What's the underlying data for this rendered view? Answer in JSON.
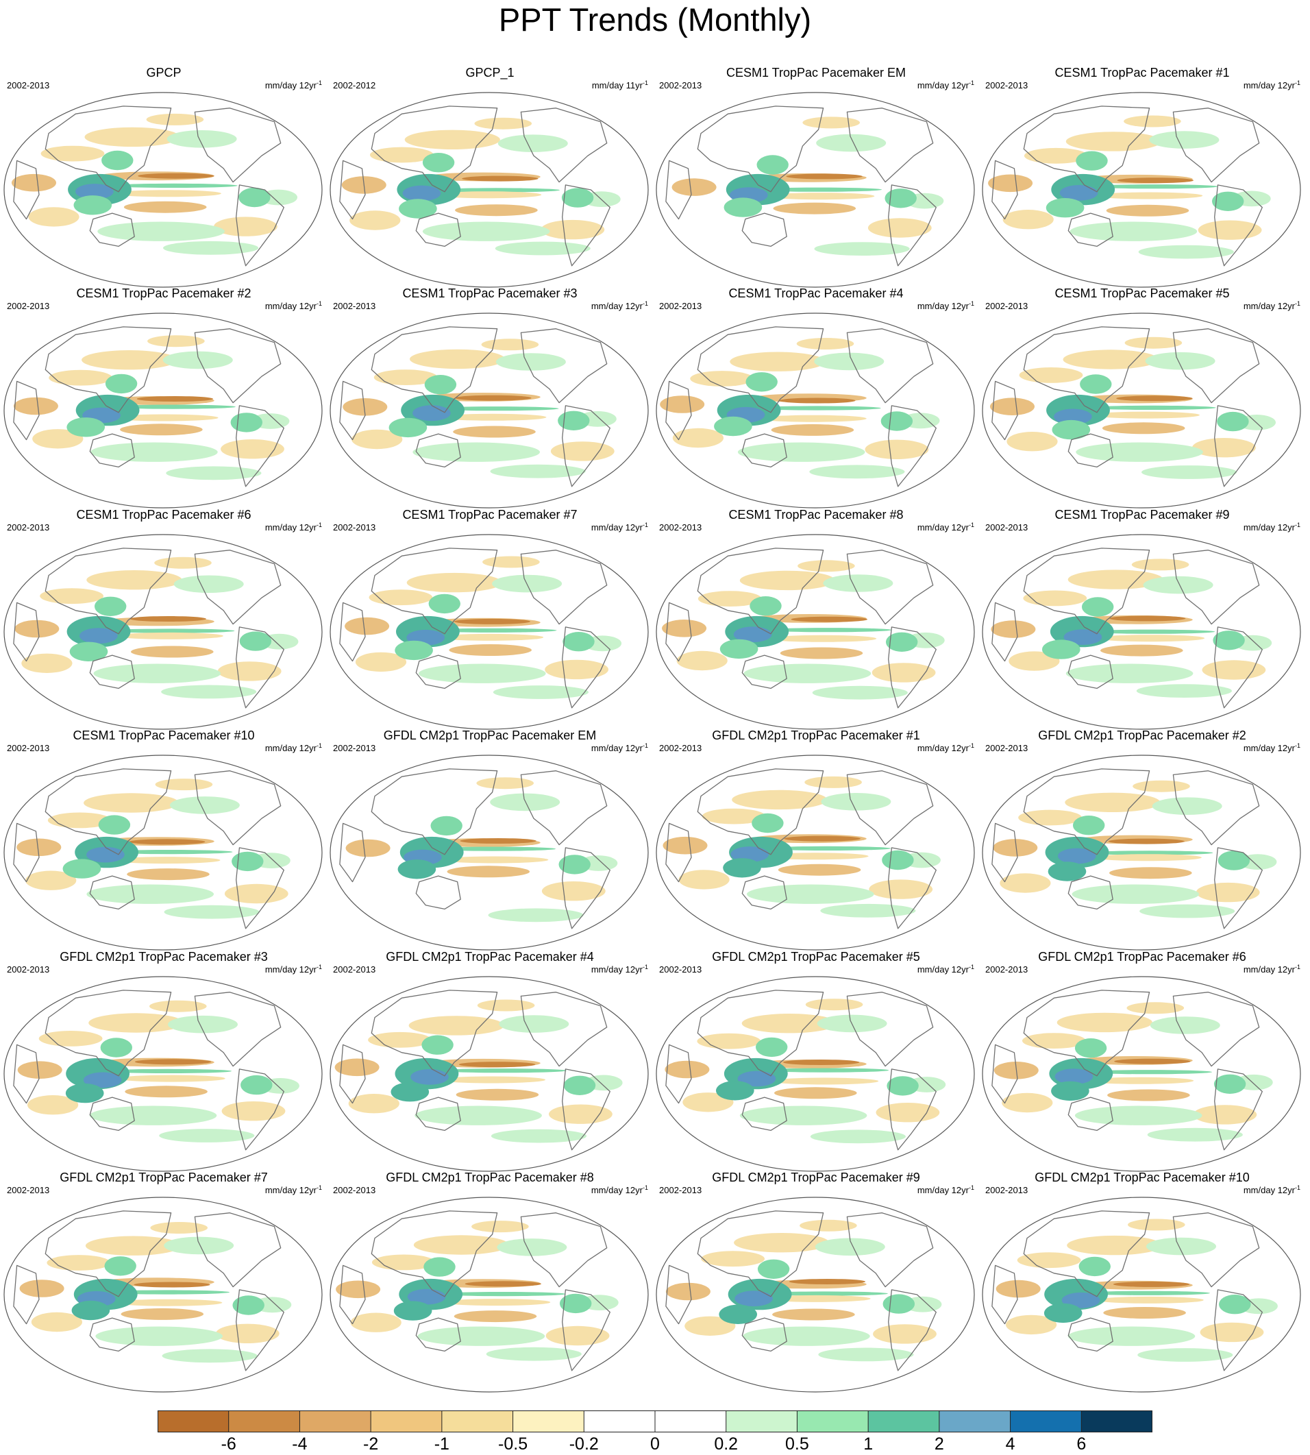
{
  "title": "PPT Trends (Monthly)",
  "panels": [
    {
      "title": "GPCP",
      "period": "2002-2013",
      "units": "mm/day 12yr",
      "units_exp": "-1"
    },
    {
      "title": "GPCP_1",
      "period": "2002-2012",
      "units": "mm/day 11yr",
      "units_exp": "-1"
    },
    {
      "title": "CESM1 TropPac Pacemaker EM",
      "period": "2002-2013",
      "units": "mm/day 12yr",
      "units_exp": "-1"
    },
    {
      "title": "CESM1 TropPac Pacemaker #1",
      "period": "2002-2013",
      "units": "mm/day 12yr",
      "units_exp": "-1"
    },
    {
      "title": "CESM1 TropPac Pacemaker #2",
      "period": "2002-2013",
      "units": "mm/day 12yr",
      "units_exp": "-1"
    },
    {
      "title": "CESM1 TropPac Pacemaker #3",
      "period": "2002-2013",
      "units": "mm/day 12yr",
      "units_exp": "-1"
    },
    {
      "title": "CESM1 TropPac Pacemaker #4",
      "period": "2002-2013",
      "units": "mm/day 12yr",
      "units_exp": "-1"
    },
    {
      "title": "CESM1 TropPac Pacemaker #5",
      "period": "2002-2013",
      "units": "mm/day 12yr",
      "units_exp": "-1"
    },
    {
      "title": "CESM1 TropPac Pacemaker #6",
      "period": "2002-2013",
      "units": "mm/day 12yr",
      "units_exp": "-1"
    },
    {
      "title": "CESM1 TropPac Pacemaker #7",
      "period": "2002-2013",
      "units": "mm/day 12yr",
      "units_exp": "-1"
    },
    {
      "title": "CESM1 TropPac Pacemaker #8",
      "period": "2002-2013",
      "units": "mm/day 12yr",
      "units_exp": "-1"
    },
    {
      "title": "CESM1 TropPac Pacemaker #9",
      "period": "2002-2013",
      "units": "mm/day 12yr",
      "units_exp": "-1"
    },
    {
      "title": "CESM1 TropPac Pacemaker #10",
      "period": "2002-2013",
      "units": "mm/day 12yr",
      "units_exp": "-1"
    },
    {
      "title": "GFDL CM2p1 TropPac Pacemaker EM",
      "period": "2002-2013",
      "units": "mm/day 12yr",
      "units_exp": "-1"
    },
    {
      "title": "GFDL CM2p1 TropPac Pacemaker #1",
      "period": "2002-2013",
      "units": "mm/day 12yr",
      "units_exp": "-1"
    },
    {
      "title": "GFDL CM2p1 TropPac Pacemaker #2",
      "period": "2002-2013",
      "units": "mm/day 12yr",
      "units_exp": "-1"
    },
    {
      "title": "GFDL CM2p1 TropPac Pacemaker #3",
      "period": "2002-2013",
      "units": "mm/day 12yr",
      "units_exp": "-1"
    },
    {
      "title": "GFDL CM2p1 TropPac Pacemaker #4",
      "period": "2002-2013",
      "units": "mm/day 12yr",
      "units_exp": "-1"
    },
    {
      "title": "GFDL CM2p1 TropPac Pacemaker #5",
      "period": "2002-2013",
      "units": "mm/day 12yr",
      "units_exp": "-1"
    },
    {
      "title": "GFDL CM2p1 TropPac Pacemaker #6",
      "period": "2002-2013",
      "units": "mm/day 12yr",
      "units_exp": "-1"
    },
    {
      "title": "GFDL CM2p1 TropPac Pacemaker #7",
      "period": "2002-2013",
      "units": "mm/day 12yr",
      "units_exp": "-1"
    },
    {
      "title": "GFDL CM2p1 TropPac Pacemaker #8",
      "period": "2002-2013",
      "units": "mm/day 12yr",
      "units_exp": "-1"
    },
    {
      "title": "GFDL CM2p1 TropPac Pacemaker #9",
      "period": "2002-2013",
      "units": "mm/day 12yr",
      "units_exp": "-1"
    },
    {
      "title": "GFDL CM2p1 TropPac Pacemaker #10",
      "period": "2002-2013",
      "units": "mm/day 12yr",
      "units_exp": "-1"
    }
  ],
  "colorbar": {
    "colors": [
      "#b86e2c",
      "#cc8a44",
      "#dfa865",
      "#f0c67e",
      "#f5dd9b",
      "#fdf2c0",
      "#ffffff",
      "#ffffff",
      "#cdf5cf",
      "#98e8b0",
      "#5cc4a0",
      "#6aa7c8",
      "#1470ae",
      "#093a5c"
    ],
    "labels": [
      "-6",
      "-4",
      "-2",
      "-1",
      "-0.5",
      "-0.2",
      "0",
      "0.2",
      "0.5",
      "1",
      "2",
      "4",
      "6"
    ]
  },
  "map_colors": {
    "dry_strong": "#c9863e",
    "dry": "#e9bf80",
    "dry_light": "#f6e0a9",
    "wet_light": "#c8f2cc",
    "wet": "#7fd9a8",
    "wet_strong": "#4fb59c",
    "wet_max": "#5b96c4",
    "coast": "#707070"
  }
}
